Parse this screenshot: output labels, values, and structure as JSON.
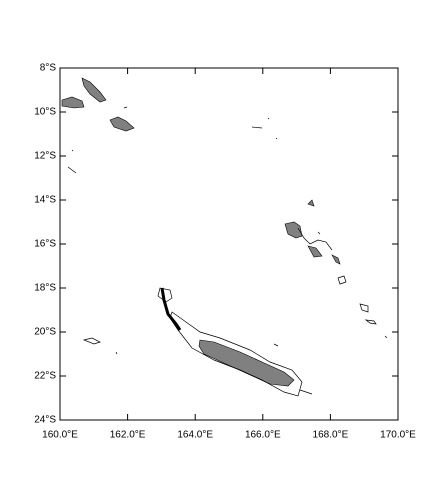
{
  "chart_data": {
    "type": "map",
    "xlim": [
      160,
      170
    ],
    "ylim": [
      -24,
      -8
    ],
    "xticks": [
      {
        "value": 160,
        "label": "160.0°E"
      },
      {
        "value": 162,
        "label": "162.0°E"
      },
      {
        "value": 164,
        "label": "164.0°E"
      },
      {
        "value": 166,
        "label": "166.0°E"
      },
      {
        "value": 168,
        "label": "168.0°E"
      },
      {
        "value": 170,
        "label": "170.0°E"
      }
    ],
    "yticks": [
      {
        "value": -8,
        "label": "8°S"
      },
      {
        "value": -10,
        "label": "10°S"
      },
      {
        "value": -12,
        "label": "12°S"
      },
      {
        "value": -14,
        "label": "14°S"
      },
      {
        "value": -16,
        "label": "16°S"
      },
      {
        "value": -18,
        "label": "18°S"
      },
      {
        "value": -20,
        "label": "20°S"
      },
      {
        "value": -22,
        "label": "22°S"
      },
      {
        "value": -24,
        "label": "24°S"
      }
    ]
  }
}
